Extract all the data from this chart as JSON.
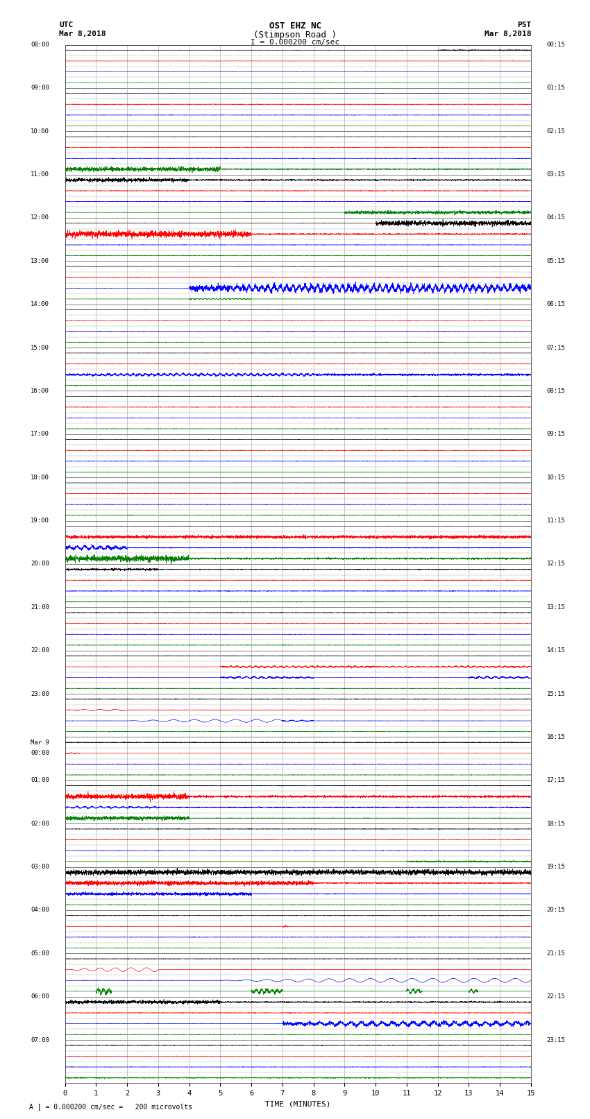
{
  "title_line1": "OST EHZ NC",
  "title_line2": "(Stimpson Road )",
  "scale_text": "I = 0.000200 cm/sec",
  "bottom_text": "A [ = 0.000200 cm/sec =   200 microvolts",
  "utc_label": "UTC",
  "utc_date": "Mar 8,2018",
  "pst_label": "PST",
  "pst_date": "Mar 8,2018",
  "xlabel": "TIME (MINUTES)",
  "left_times_utc": [
    "08:00",
    "09:00",
    "10:00",
    "11:00",
    "12:00",
    "13:00",
    "14:00",
    "15:00",
    "16:00",
    "17:00",
    "18:00",
    "19:00",
    "20:00",
    "21:00",
    "22:00",
    "23:00",
    "Mar 9\n00:00",
    "01:00",
    "02:00",
    "03:00",
    "04:00",
    "05:00",
    "06:00",
    "07:00"
  ],
  "right_times_pst": [
    "00:15",
    "01:15",
    "02:15",
    "03:15",
    "04:15",
    "05:15",
    "06:15",
    "07:15",
    "08:15",
    "09:15",
    "10:15",
    "11:15",
    "12:15",
    "13:15",
    "14:15",
    "15:15",
    "16:15",
    "17:15",
    "18:15",
    "19:15",
    "20:15",
    "21:15",
    "22:15",
    "23:15"
  ],
  "num_rows": 96,
  "traces_per_hour": 4,
  "num_hours": 24,
  "bg_color": "#ffffff",
  "grid_color": "#999999",
  "trace_colors_cycle": [
    "black",
    "red",
    "blue",
    "green"
  ],
  "xlim": [
    0,
    15
  ],
  "xticks": [
    0,
    1,
    2,
    3,
    4,
    5,
    6,
    7,
    8,
    9,
    10,
    11,
    12,
    13,
    14,
    15
  ]
}
